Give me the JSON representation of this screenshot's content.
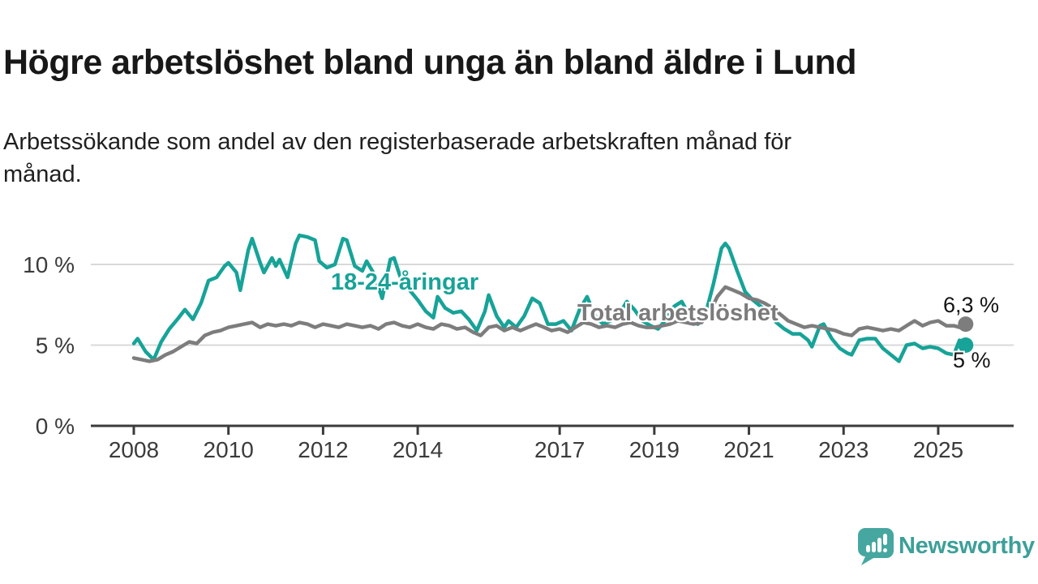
{
  "header": {
    "title": "Högre arbetslöshet bland unga än bland äldre i Lund",
    "subtitle": "Arbetssökande som andel av den registerbaserade arbetskraften månad för månad.",
    "subtitle_lines": [
      "Arbetssökande som andel av den registerbaserade arbetskraften månad för",
      "månad."
    ]
  },
  "branding": {
    "name": "Newsworthy",
    "icon": "newsworthy-speech-bubble-chart-icon",
    "icon_color": "#46a7a0",
    "text_color": "#3d9f99"
  },
  "colors": {
    "young": "#17a398",
    "total": "#7d7d7d",
    "axis": "#3b3b3b",
    "grid": "#d9d9d9",
    "annotation_text": "#141414",
    "background": "#ffffff"
  },
  "chart_data": {
    "type": "line",
    "unit": "%",
    "title": "Högre arbetslöshet bland unga än bland äldre i Lund",
    "x_axis": {
      "ticks": [
        2008,
        2010,
        2012,
        2014,
        2017,
        2019,
        2021,
        2023,
        2025
      ],
      "range": [
        2007.9,
        2026.6
      ],
      "grid": false
    },
    "y_axis": {
      "ticks": [
        0,
        5,
        10
      ],
      "tick_labels": [
        "0 %",
        "5 %",
        "10 %"
      ],
      "range": [
        0,
        12.3
      ],
      "grid": true
    },
    "legend_position": "inline-labels",
    "series": [
      {
        "id": "young",
        "name": "18-24-åringar",
        "color": "#17a398",
        "end_label": "5 %",
        "end_value": 5.0,
        "points": [
          [
            2008.0,
            5.1
          ],
          [
            2008.08,
            5.4
          ],
          [
            2008.25,
            4.6
          ],
          [
            2008.42,
            4.1
          ],
          [
            2008.58,
            5.2
          ],
          [
            2008.75,
            6.0
          ],
          [
            2008.92,
            6.6
          ],
          [
            2009.08,
            7.2
          ],
          [
            2009.25,
            6.6
          ],
          [
            2009.42,
            7.6
          ],
          [
            2009.58,
            9.0
          ],
          [
            2009.75,
            9.2
          ],
          [
            2009.92,
            9.9
          ],
          [
            2010.0,
            10.1
          ],
          [
            2010.17,
            9.5
          ],
          [
            2010.25,
            8.4
          ],
          [
            2010.42,
            10.9
          ],
          [
            2010.5,
            11.6
          ],
          [
            2010.67,
            10.1
          ],
          [
            2010.75,
            9.5
          ],
          [
            2010.92,
            10.4
          ],
          [
            2011.0,
            9.9
          ],
          [
            2011.08,
            10.3
          ],
          [
            2011.25,
            9.2
          ],
          [
            2011.42,
            11.3
          ],
          [
            2011.5,
            11.8
          ],
          [
            2011.67,
            11.7
          ],
          [
            2011.83,
            11.5
          ],
          [
            2011.92,
            10.2
          ],
          [
            2012.08,
            9.8
          ],
          [
            2012.25,
            10.0
          ],
          [
            2012.42,
            11.6
          ],
          [
            2012.5,
            11.5
          ],
          [
            2012.67,
            9.9
          ],
          [
            2012.83,
            9.6
          ],
          [
            2012.92,
            10.2
          ],
          [
            2013.08,
            9.4
          ],
          [
            2013.25,
            7.9
          ],
          [
            2013.42,
            10.3
          ],
          [
            2013.5,
            10.4
          ],
          [
            2013.67,
            8.9
          ],
          [
            2013.83,
            8.4
          ],
          [
            2014.0,
            7.8
          ],
          [
            2014.17,
            7.1
          ],
          [
            2014.33,
            6.7
          ],
          [
            2014.42,
            8.0
          ],
          [
            2014.58,
            7.3
          ],
          [
            2014.75,
            7.0
          ],
          [
            2014.92,
            7.1
          ],
          [
            2015.08,
            6.6
          ],
          [
            2015.25,
            5.9
          ],
          [
            2015.42,
            7.1
          ],
          [
            2015.5,
            8.1
          ],
          [
            2015.67,
            6.8
          ],
          [
            2015.83,
            6.1
          ],
          [
            2015.92,
            6.5
          ],
          [
            2016.08,
            6.1
          ],
          [
            2016.25,
            6.8
          ],
          [
            2016.42,
            7.9
          ],
          [
            2016.58,
            7.6
          ],
          [
            2016.75,
            6.3
          ],
          [
            2016.92,
            6.3
          ],
          [
            2017.08,
            6.5
          ],
          [
            2017.25,
            5.9
          ],
          [
            2017.42,
            7.2
          ],
          [
            2017.58,
            8.0
          ],
          [
            2017.75,
            6.8
          ],
          [
            2017.92,
            6.3
          ],
          [
            2018.08,
            6.5
          ],
          [
            2018.25,
            6.9
          ],
          [
            2018.42,
            7.7
          ],
          [
            2018.58,
            7.2
          ],
          [
            2018.75,
            6.5
          ],
          [
            2018.92,
            6.2
          ],
          [
            2019.08,
            6.0
          ],
          [
            2019.25,
            6.6
          ],
          [
            2019.42,
            7.4
          ],
          [
            2019.58,
            7.7
          ],
          [
            2019.75,
            6.8
          ],
          [
            2019.92,
            6.3
          ],
          [
            2020.08,
            6.9
          ],
          [
            2020.25,
            8.8
          ],
          [
            2020.42,
            11.0
          ],
          [
            2020.5,
            11.3
          ],
          [
            2020.58,
            11.0
          ],
          [
            2020.75,
            9.6
          ],
          [
            2020.92,
            8.3
          ],
          [
            2021.08,
            7.8
          ],
          [
            2021.25,
            7.4
          ],
          [
            2021.42,
            7.0
          ],
          [
            2021.58,
            6.4
          ],
          [
            2021.75,
            6.0
          ],
          [
            2021.92,
            5.7
          ],
          [
            2022.08,
            5.7
          ],
          [
            2022.25,
            5.3
          ],
          [
            2022.33,
            4.9
          ],
          [
            2022.5,
            6.2
          ],
          [
            2022.58,
            6.3
          ],
          [
            2022.75,
            5.4
          ],
          [
            2022.92,
            4.8
          ],
          [
            2023.08,
            4.5
          ],
          [
            2023.17,
            4.4
          ],
          [
            2023.33,
            5.3
          ],
          [
            2023.5,
            5.4
          ],
          [
            2023.67,
            5.4
          ],
          [
            2023.83,
            4.8
          ],
          [
            2024.0,
            4.4
          ],
          [
            2024.17,
            4.0
          ],
          [
            2024.33,
            5.0
          ],
          [
            2024.5,
            5.1
          ],
          [
            2024.67,
            4.8
          ],
          [
            2024.83,
            4.9
          ],
          [
            2025.0,
            4.8
          ],
          [
            2025.17,
            4.5
          ],
          [
            2025.33,
            4.4
          ],
          [
            2025.45,
            5.3
          ],
          [
            2025.58,
            5.0
          ]
        ]
      },
      {
        "id": "total",
        "name": "Total arbetslöshet",
        "color": "#7d7d7d",
        "end_label": "6,3 %",
        "end_value": 6.3,
        "points": [
          [
            2008.0,
            4.2
          ],
          [
            2008.17,
            4.1
          ],
          [
            2008.33,
            4.0
          ],
          [
            2008.5,
            4.1
          ],
          [
            2008.67,
            4.4
          ],
          [
            2008.83,
            4.6
          ],
          [
            2009.0,
            4.9
          ],
          [
            2009.17,
            5.2
          ],
          [
            2009.33,
            5.1
          ],
          [
            2009.5,
            5.6
          ],
          [
            2009.67,
            5.8
          ],
          [
            2009.83,
            5.9
          ],
          [
            2010.0,
            6.1
          ],
          [
            2010.17,
            6.2
          ],
          [
            2010.33,
            6.3
          ],
          [
            2010.5,
            6.4
          ],
          [
            2010.67,
            6.1
          ],
          [
            2010.83,
            6.3
          ],
          [
            2011.0,
            6.2
          ],
          [
            2011.17,
            6.3
          ],
          [
            2011.33,
            6.2
          ],
          [
            2011.5,
            6.4
          ],
          [
            2011.67,
            6.3
          ],
          [
            2011.83,
            6.1
          ],
          [
            2012.0,
            6.3
          ],
          [
            2012.17,
            6.2
          ],
          [
            2012.33,
            6.1
          ],
          [
            2012.5,
            6.3
          ],
          [
            2012.67,
            6.2
          ],
          [
            2012.83,
            6.1
          ],
          [
            2013.0,
            6.2
          ],
          [
            2013.17,
            6.0
          ],
          [
            2013.33,
            6.3
          ],
          [
            2013.5,
            6.4
          ],
          [
            2013.67,
            6.2
          ],
          [
            2013.83,
            6.1
          ],
          [
            2014.0,
            6.3
          ],
          [
            2014.17,
            6.1
          ],
          [
            2014.33,
            6.0
          ],
          [
            2014.5,
            6.3
          ],
          [
            2014.67,
            6.2
          ],
          [
            2014.83,
            6.0
          ],
          [
            2015.0,
            6.1
          ],
          [
            2015.17,
            5.8
          ],
          [
            2015.33,
            5.6
          ],
          [
            2015.5,
            6.1
          ],
          [
            2015.67,
            6.2
          ],
          [
            2015.83,
            5.9
          ],
          [
            2016.0,
            6.1
          ],
          [
            2016.17,
            5.9
          ],
          [
            2016.33,
            6.1
          ],
          [
            2016.5,
            6.3
          ],
          [
            2016.67,
            6.1
          ],
          [
            2016.83,
            5.9
          ],
          [
            2017.0,
            6.0
          ],
          [
            2017.17,
            5.8
          ],
          [
            2017.33,
            6.1
          ],
          [
            2017.5,
            6.4
          ],
          [
            2017.67,
            6.3
          ],
          [
            2017.83,
            6.1
          ],
          [
            2018.0,
            6.2
          ],
          [
            2018.17,
            6.1
          ],
          [
            2018.33,
            6.3
          ],
          [
            2018.5,
            6.4
          ],
          [
            2018.67,
            6.2
          ],
          [
            2018.83,
            6.1
          ],
          [
            2019.0,
            6.1
          ],
          [
            2019.17,
            6.2
          ],
          [
            2019.33,
            6.3
          ],
          [
            2019.5,
            6.5
          ],
          [
            2019.67,
            6.4
          ],
          [
            2019.83,
            6.3
          ],
          [
            2020.0,
            6.4
          ],
          [
            2020.17,
            7.0
          ],
          [
            2020.33,
            8.0
          ],
          [
            2020.5,
            8.6
          ],
          [
            2020.67,
            8.4
          ],
          [
            2020.83,
            8.2
          ],
          [
            2021.0,
            7.9
          ],
          [
            2021.17,
            7.8
          ],
          [
            2021.33,
            7.6
          ],
          [
            2021.5,
            7.3
          ],
          [
            2021.67,
            6.9
          ],
          [
            2021.83,
            6.5
          ],
          [
            2022.0,
            6.3
          ],
          [
            2022.17,
            6.1
          ],
          [
            2022.33,
            6.2
          ],
          [
            2022.5,
            6.1
          ],
          [
            2022.67,
            6.0
          ],
          [
            2022.83,
            5.9
          ],
          [
            2023.0,
            5.7
          ],
          [
            2023.17,
            5.6
          ],
          [
            2023.33,
            6.0
          ],
          [
            2023.5,
            6.1
          ],
          [
            2023.67,
            6.0
          ],
          [
            2023.83,
            5.9
          ],
          [
            2024.0,
            6.0
          ],
          [
            2024.17,
            5.9
          ],
          [
            2024.33,
            6.2
          ],
          [
            2024.5,
            6.5
          ],
          [
            2024.67,
            6.2
          ],
          [
            2024.83,
            6.4
          ],
          [
            2025.0,
            6.5
          ],
          [
            2025.17,
            6.2
          ],
          [
            2025.33,
            6.2
          ],
          [
            2025.45,
            6.1
          ],
          [
            2025.58,
            6.3
          ]
        ]
      }
    ]
  }
}
